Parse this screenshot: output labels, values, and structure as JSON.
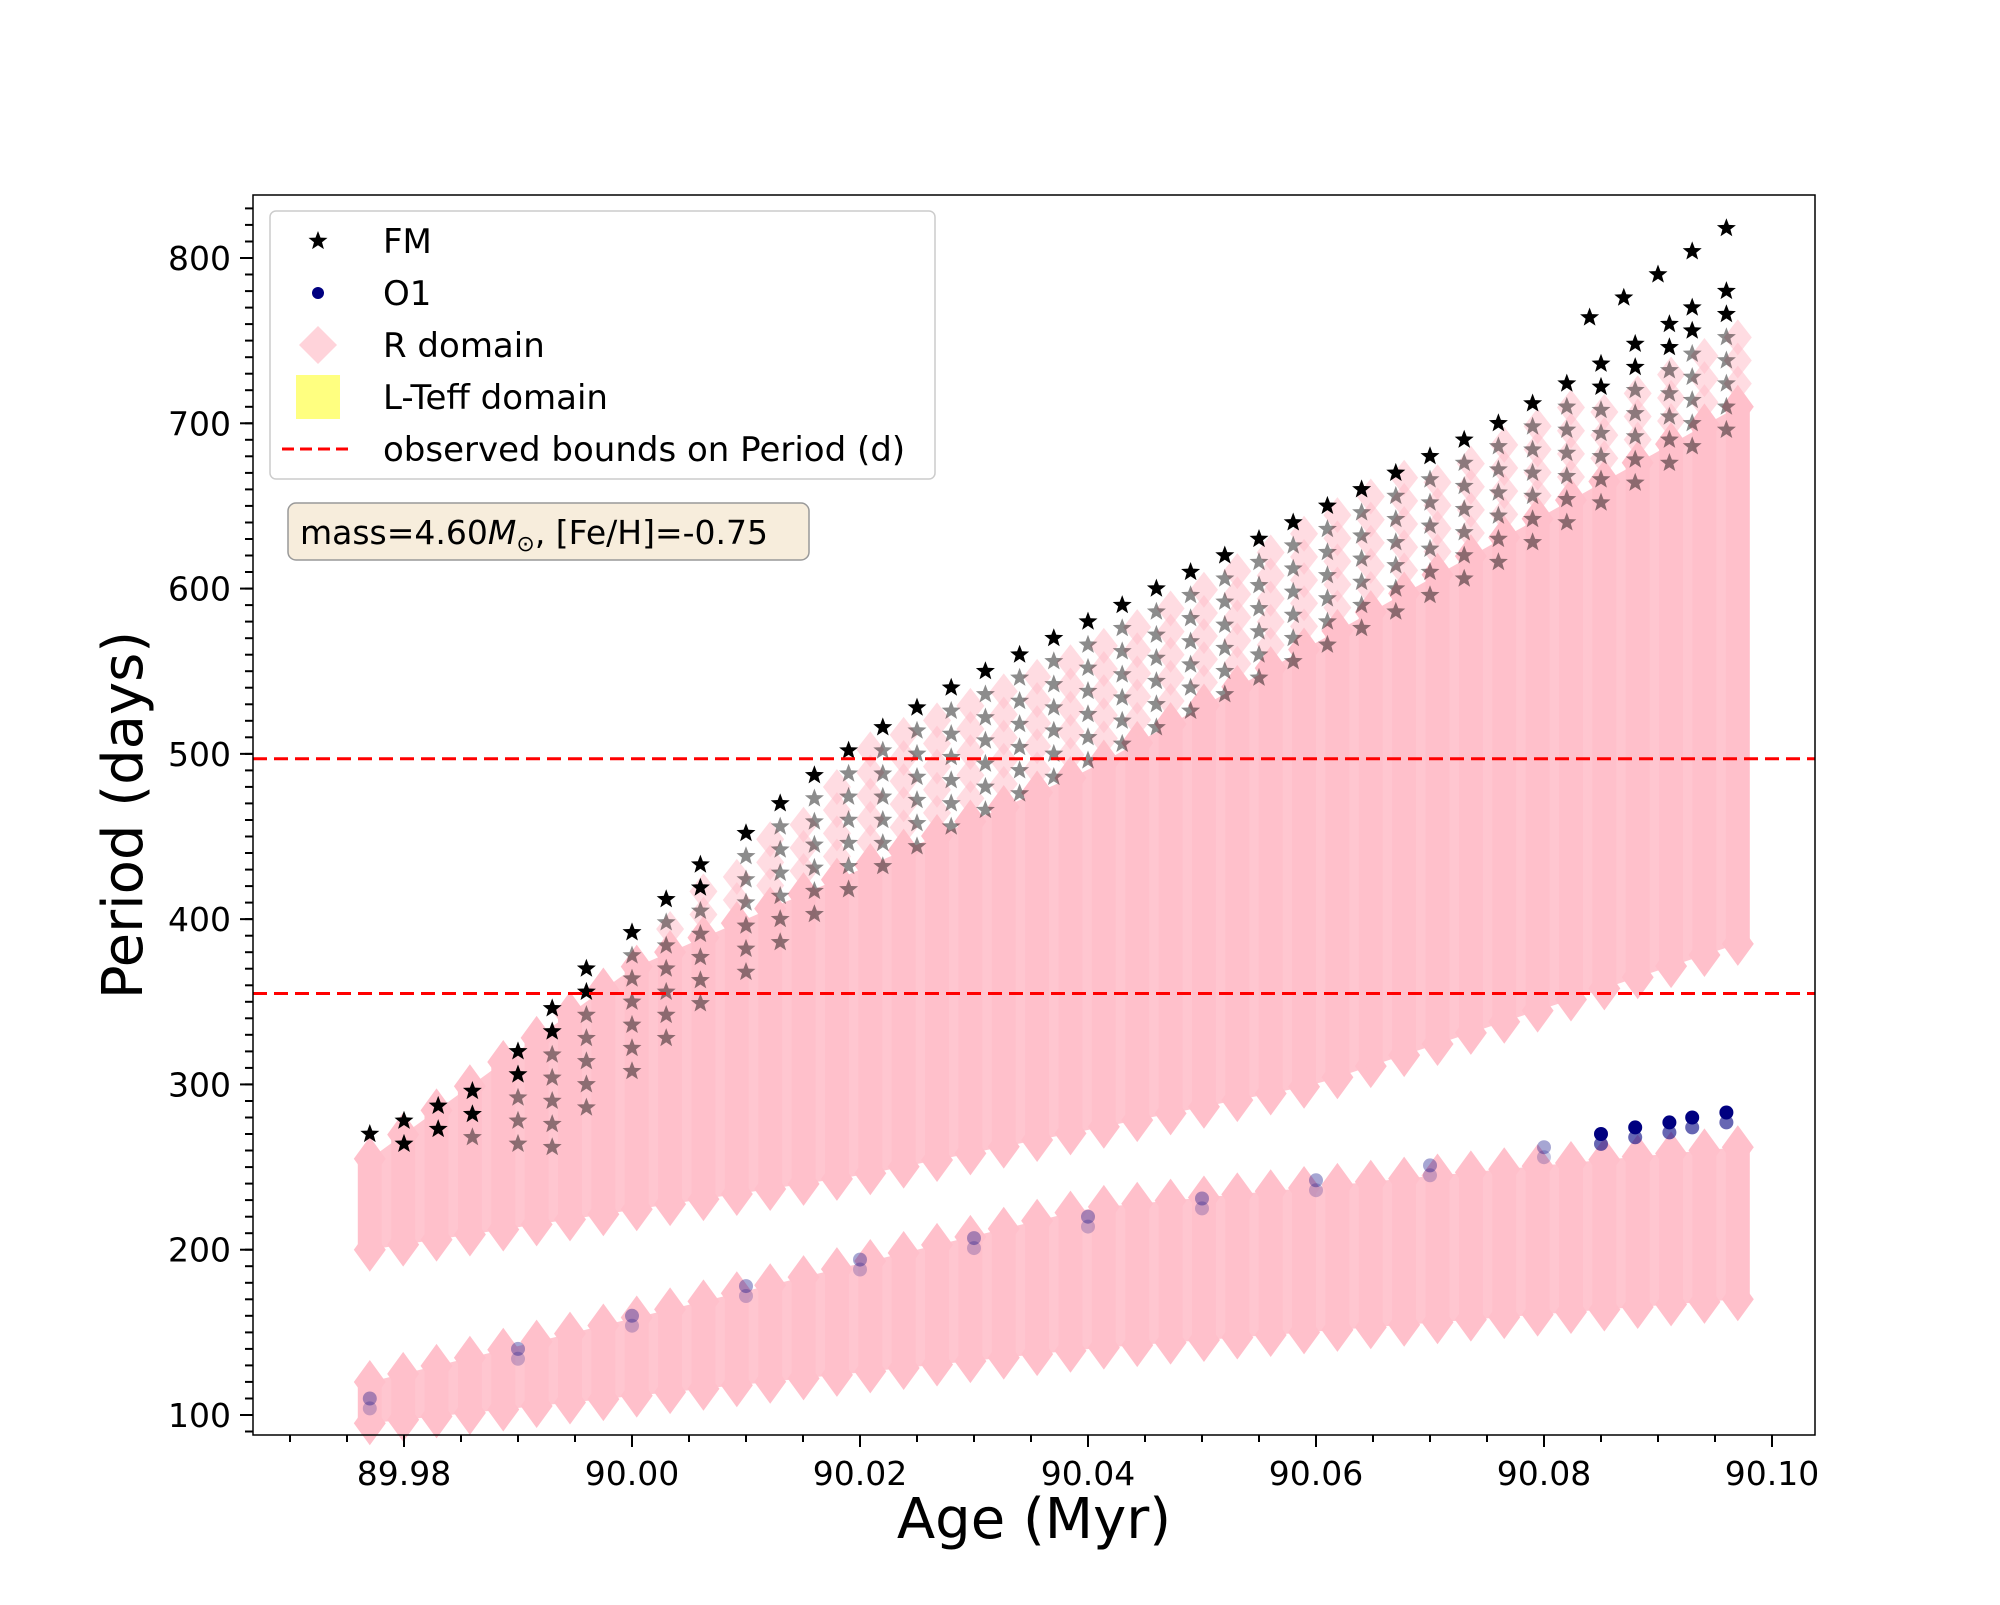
{
  "chart_data": {
    "type": "scatter",
    "xlabel": "Age (Myr)",
    "ylabel": "Period (days)",
    "xlim": [
      89.967,
      90.108
    ],
    "ylim": [
      88,
      838
    ],
    "x_ticks": [
      89.98,
      90.0,
      90.02,
      90.04,
      90.06,
      90.08,
      90.1
    ],
    "x_tick_labels": [
      "89.98",
      "90.00",
      "90.02",
      "90.04",
      "90.06",
      "90.08",
      "90.10"
    ],
    "y_ticks": [
      100,
      200,
      300,
      400,
      500,
      600,
      700,
      800
    ],
    "y_tick_labels": [
      "100",
      "200",
      "300",
      "400",
      "500",
      "600",
      "700",
      "800"
    ],
    "grid": false,
    "legend_position": "top-left",
    "legend": [
      "FM",
      "O1",
      "R domain",
      "L-Teff domain",
      "observed bounds on Period (d)"
    ],
    "annotation": {
      "prefix": "mass=4.60",
      "mass_symbol": "M",
      "mass_subscript": "⊙",
      "suffix": ", [Fe/H]=-0.75"
    },
    "observed_bounds": [
      355,
      497
    ],
    "colors": {
      "FM": "#000000",
      "O1": "#000080",
      "R_domain": "#ffc0cb",
      "L_Teff_domain": "#ffff80",
      "bounds": "#ff0000",
      "annotation_box": "#f7eddc"
    },
    "series": [
      {
        "name": "FM",
        "marker": "star",
        "x": [
          89.977,
          89.98,
          89.983,
          89.986,
          89.99,
          89.993,
          89.996,
          90.0,
          90.003,
          90.006,
          90.01,
          90.013,
          90.016,
          90.019,
          90.022,
          90.025,
          90.028,
          90.031,
          90.034,
          90.037,
          90.04,
          90.043,
          90.046,
          90.049,
          90.052,
          90.055,
          90.058,
          90.061,
          90.064,
          90.067,
          90.07,
          90.073,
          90.076,
          90.079,
          90.082,
          90.085,
          90.088,
          90.091,
          90.093,
          90.096
        ],
        "y": [
          270,
          278,
          287,
          296,
          320,
          346,
          370,
          392,
          412,
          433,
          452,
          470,
          487,
          502,
          516,
          528,
          540,
          550,
          560,
          570,
          580,
          590,
          600,
          610,
          620,
          630,
          640,
          650,
          660,
          670,
          680,
          690,
          700,
          712,
          724,
          736,
          748,
          760,
          770,
          780
        ],
        "y_max_at_end": [
          740,
          752,
          764,
          776,
          790,
          804,
          818
        ]
      },
      {
        "name": "O1",
        "marker": "circle",
        "x": [
          89.977,
          89.99,
          90.0,
          90.01,
          90.02,
          90.03,
          90.04,
          90.05,
          90.06,
          90.07,
          90.08,
          90.085,
          90.088,
          90.091,
          90.093,
          90.096
        ],
        "y": [
          110,
          140,
          160,
          178,
          194,
          207,
          220,
          231,
          242,
          251,
          262,
          270,
          274,
          277,
          280,
          283
        ]
      },
      {
        "name": "R domain",
        "marker": "diamond",
        "upper_band": {
          "x_start": 89.977,
          "x_end": 90.097,
          "lower_edge_y": [
            [
              89.977,
              200
            ],
            [
              90.02,
              245
            ],
            [
              90.06,
              300
            ],
            [
              90.097,
              385
            ]
          ],
          "upper_edge_y": [
            [
              89.977,
              245
            ],
            [
              89.99,
              295
            ],
            [
              90.0,
              380
            ],
            [
              90.02,
              500
            ],
            [
              90.06,
              645
            ],
            [
              90.097,
              755
            ]
          ],
          "dense_top_y": [
            [
              89.977,
              255
            ],
            [
              90.0,
              370
            ],
            [
              90.04,
              490
            ],
            [
              90.097,
              710
            ]
          ]
        },
        "lower_band": {
          "x_start": 89.977,
          "x_end": 90.097,
          "lower_edge_y": [
            [
              89.977,
              95
            ],
            [
              90.04,
              140
            ],
            [
              90.097,
              170
            ]
          ],
          "upper_edge_y": [
            [
              89.977,
              120
            ],
            [
              90.04,
              225
            ],
            [
              90.097,
              262
            ]
          ]
        }
      },
      {
        "name": "L-Teff domain",
        "marker": "square",
        "x": [],
        "y": []
      }
    ]
  }
}
